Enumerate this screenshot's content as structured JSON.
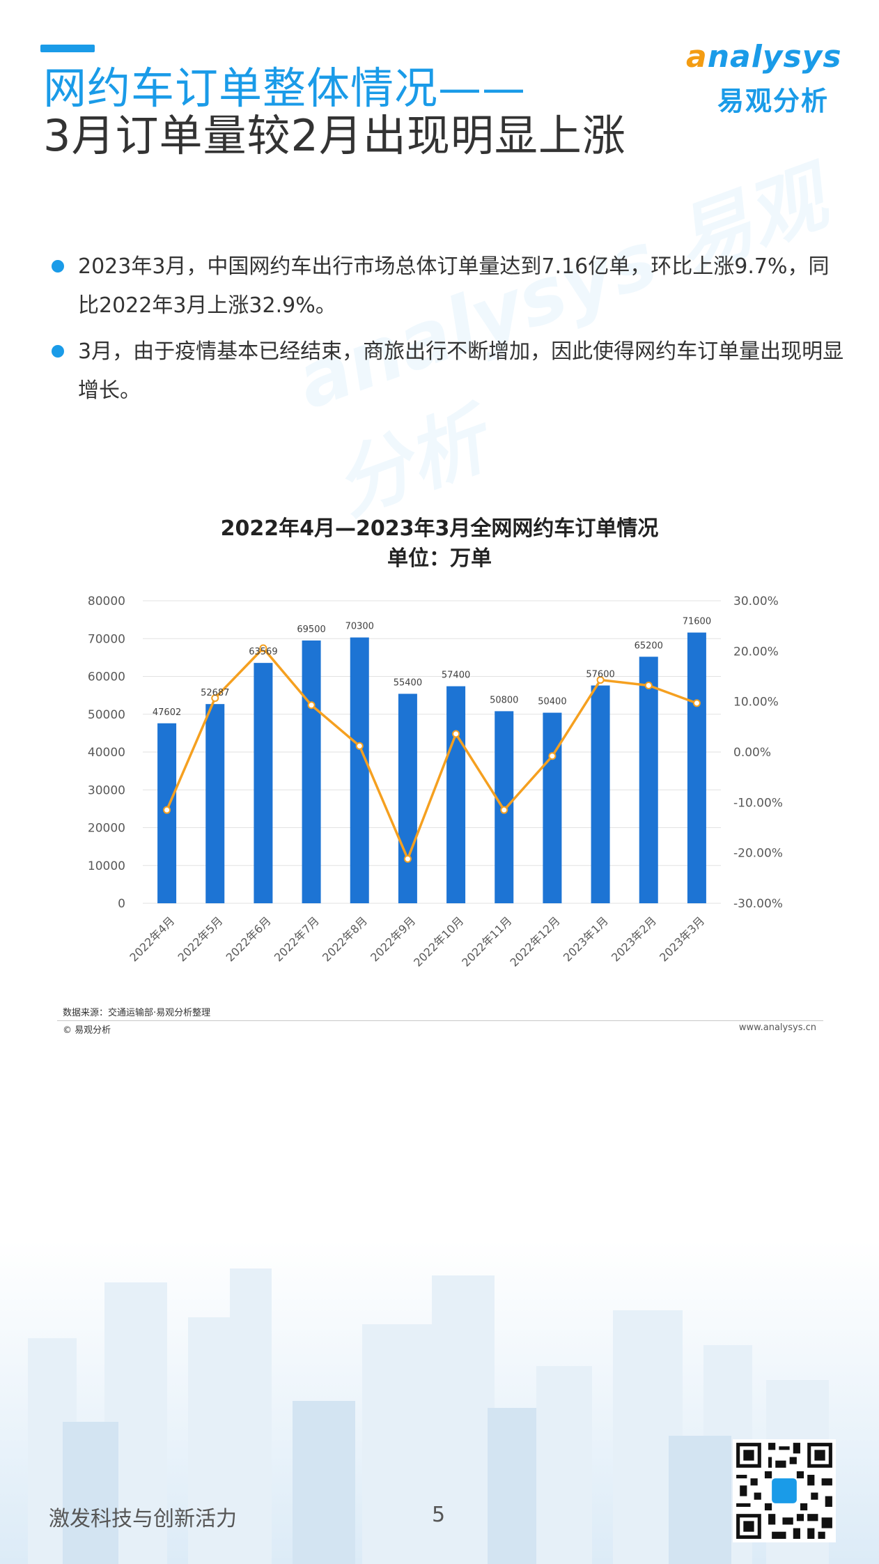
{
  "header": {
    "title_line1": "网约车订单整体情况——",
    "title_line2": "3月订单量较2月出现明显上涨"
  },
  "logo": {
    "en_first": "a",
    "en_rest": "nalysys",
    "cn": "易观分析"
  },
  "bullets": [
    {
      "text": "2023年3月，中国网约车出行市场总体订单量达到7.16亿单，环比上涨9.7%，同比2022年3月上涨32.9%。"
    },
    {
      "text": "3月，由于疫情基本已经结束，商旅出行不断增加，因此使得网约车订单量出现明显增长。"
    }
  ],
  "watermark_text": "analysys 易观分析",
  "chart_data": {
    "type": "bar",
    "title": "2022年4月—2023年3月全网网约车订单情况",
    "subtitle": "单位：万单",
    "categories": [
      "2022年4月",
      "2022年5月",
      "2022年6月",
      "2022年7月",
      "2022年8月",
      "2022年9月",
      "2022年10月",
      "2022年11月",
      "2022年12月",
      "2023年1月",
      "2023年2月",
      "2023年3月"
    ],
    "series": [
      {
        "type": "bar",
        "axis": "left",
        "values": [
          47602,
          52687,
          63569,
          69500,
          70300,
          55400,
          57400,
          50800,
          50400,
          57600,
          65200,
          71600
        ],
        "labels": [
          "47602",
          "52687",
          "63569",
          "69500",
          "70300",
          "55400",
          "57400",
          "50800",
          "50400",
          "57600",
          "65200",
          "71600"
        ],
        "color": "#1d74d4"
      },
      {
        "type": "line",
        "axis": "right",
        "values": [
          -11.5,
          10.7,
          20.6,
          9.3,
          1.2,
          -21.2,
          3.6,
          -11.5,
          -0.8,
          14.3,
          13.2,
          9.7
        ],
        "color": "#f5a020"
      }
    ],
    "yLeft": {
      "min": 0,
      "max": 80000,
      "ticks": [
        "0",
        "10000",
        "20000",
        "30000",
        "40000",
        "50000",
        "60000",
        "70000",
        "80000"
      ]
    },
    "yRight": {
      "min": -30,
      "max": 30,
      "ticks": [
        "-30.00%",
        "-20.00%",
        "-10.00%",
        "0.00%",
        "10.00%",
        "20.00%",
        "30.00%"
      ]
    },
    "grid": true,
    "legend": "none"
  },
  "footer": {
    "source": "数据来源：交通运输部·易观分析整理",
    "copyright": "© 易观分析",
    "website": "www.analysys.cn",
    "slogan": "激发科技与创新活力",
    "page_number": "5"
  }
}
